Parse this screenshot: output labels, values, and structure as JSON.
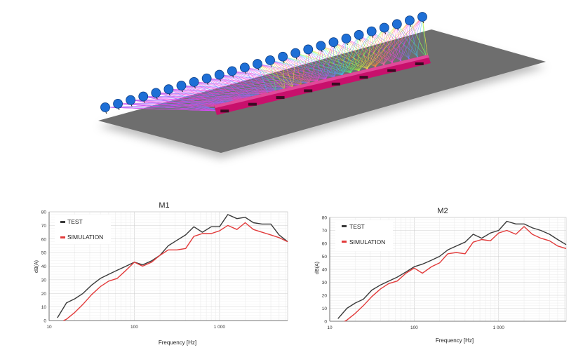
{
  "scene": {
    "colors": {
      "ground": "#6e6e6e",
      "train": "#c8106c",
      "microphone": "#1e6fd6"
    },
    "microphone_count": 26
  },
  "chart_data": [
    {
      "type": "line",
      "title": "M1",
      "xlabel": "Frequency [Hz]",
      "ylabel": "dB(A)",
      "xscale": "log",
      "xlim": [
        10,
        6300
      ],
      "ylim": [
        0,
        80
      ],
      "x_ticks": [
        10,
        100,
        1000
      ],
      "x_tick_labels": [
        "10",
        "100",
        "1 000"
      ],
      "y_ticks": [
        0,
        10,
        20,
        30,
        40,
        50,
        60,
        70,
        80
      ],
      "y_tick_labels": [
        "0",
        "10",
        "20",
        "30",
        "40",
        "50",
        "60",
        "70",
        "80"
      ],
      "grid": true,
      "legend_position": "top-left",
      "x": [
        12.5,
        16,
        20,
        25,
        31.5,
        40,
        50,
        63,
        80,
        100,
        125,
        160,
        200,
        250,
        315,
        400,
        500,
        630,
        800,
        1000,
        1250,
        1600,
        2000,
        2500,
        3150,
        4000,
        5000,
        6300
      ],
      "series": [
        {
          "name": "TEST",
          "color": "#3a3a3a",
          "values": [
            2,
            13,
            16,
            20,
            26,
            31,
            34,
            37,
            40,
            43,
            41,
            44,
            48,
            55,
            59,
            63,
            69,
            65,
            69,
            69,
            78,
            75,
            76,
            72,
            71,
            71,
            63,
            58
          ]
        },
        {
          "name": "SIMULATION",
          "color": "#e23b3b",
          "values": [
            -2,
            1,
            6,
            12,
            19,
            25,
            29,
            31,
            37,
            43,
            40,
            43,
            48,
            52,
            52,
            53,
            62,
            64,
            64,
            66,
            70,
            67,
            72,
            67,
            65,
            63,
            61,
            58
          ]
        }
      ]
    },
    {
      "type": "line",
      "title": "M2",
      "xlabel": "Frequency [Hz]",
      "ylabel": "dB(A)",
      "xscale": "log",
      "xlim": [
        10,
        6300
      ],
      "ylim": [
        0,
        80
      ],
      "x_ticks": [
        10,
        100,
        1000
      ],
      "x_tick_labels": [
        "10",
        "100",
        "1 000"
      ],
      "y_ticks": [
        0,
        10,
        20,
        30,
        40,
        50,
        60,
        70,
        80
      ],
      "y_tick_labels": [
        "0",
        "10",
        "20",
        "30",
        "40",
        "50",
        "60",
        "70",
        "80"
      ],
      "grid": true,
      "legend_position": "top-left",
      "x": [
        12.5,
        16,
        20,
        25,
        31.5,
        40,
        50,
        63,
        80,
        100,
        125,
        160,
        200,
        250,
        315,
        400,
        500,
        630,
        800,
        1000,
        1250,
        1600,
        2000,
        2500,
        3150,
        4000,
        5000,
        6300
      ],
      "series": [
        {
          "name": "TEST",
          "color": "#3a3a3a",
          "values": [
            2,
            10,
            14,
            17,
            24,
            28,
            31,
            34,
            38,
            42,
            44,
            47,
            50,
            55,
            58,
            61,
            67,
            64,
            68,
            70,
            77,
            75,
            75,
            72,
            70,
            67,
            63,
            59
          ]
        },
        {
          "name": "SIMULATION",
          "color": "#e23b3b",
          "values": [
            -3,
            1,
            6,
            12,
            19,
            25,
            29,
            31,
            37,
            41,
            37,
            42,
            45,
            52,
            53,
            52,
            61,
            63,
            62,
            68,
            70,
            67,
            73,
            67,
            64,
            62,
            58,
            56
          ]
        }
      ]
    }
  ]
}
